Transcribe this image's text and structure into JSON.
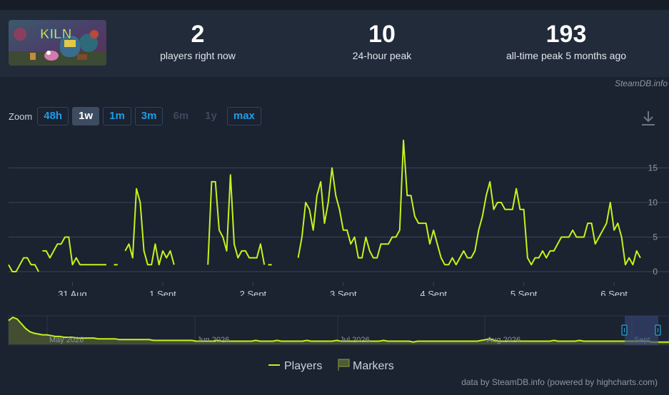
{
  "stats": [
    {
      "value": "2",
      "label": "players right now"
    },
    {
      "value": "10",
      "label": "24-hour peak"
    },
    {
      "value": "193",
      "label": "all-time peak 5 months ago"
    }
  ],
  "game_logo_text": "KILN",
  "credit_top": "SteamDB.info",
  "zoom": {
    "label": "Zoom",
    "buttons": [
      {
        "label": "48h",
        "state": "enabled"
      },
      {
        "label": "1w",
        "state": "active"
      },
      {
        "label": "1m",
        "state": "enabled"
      },
      {
        "label": "3m",
        "state": "enabled"
      },
      {
        "label": "6m",
        "state": "disabled"
      },
      {
        "label": "1y",
        "state": "disabled"
      },
      {
        "label": "max",
        "state": "enabled"
      }
    ]
  },
  "icons": {
    "download": "download-icon"
  },
  "chart_data": {
    "type": "line",
    "title": "",
    "xlabel": "",
    "ylabel": "",
    "ylim": [
      0,
      20
    ],
    "yticks": [
      0,
      5,
      10,
      15
    ],
    "ytick_labels": [
      "0",
      "5",
      "10",
      "15"
    ],
    "x_unit": "hours since the 30 Aug 12:00 data start",
    "xlim": [
      0,
      172
    ],
    "xticks": [
      {
        "x": 17,
        "label": "31 Aug"
      },
      {
        "x": 41,
        "label": "1 Sept"
      },
      {
        "x": 65,
        "label": "2 Sept"
      },
      {
        "x": 89,
        "label": "3 Sept"
      },
      {
        "x": 113,
        "label": "4 Sept"
      },
      {
        "x": 137,
        "label": "5 Sept"
      },
      {
        "x": 161,
        "label": "6 Sept"
      }
    ],
    "grid": true,
    "line_color": "#c3f31c",
    "series": [
      {
        "name": "Players",
        "segments": [
          [
            [
              0,
              1
            ],
            [
              1,
              0
            ],
            [
              2,
              0
            ],
            [
              3,
              1
            ],
            [
              4,
              2
            ],
            [
              5,
              2
            ],
            [
              6,
              1
            ],
            [
              7,
              1
            ],
            [
              8,
              0
            ]
          ],
          [
            [
              9,
              3
            ],
            [
              10,
              3
            ],
            [
              11,
              2
            ],
            [
              12,
              3
            ],
            [
              13,
              4
            ],
            [
              14,
              4
            ],
            [
              15,
              5
            ],
            [
              16,
              5
            ],
            [
              17,
              1
            ],
            [
              18,
              2
            ],
            [
              19,
              1
            ],
            [
              20,
              1
            ],
            [
              21,
              1
            ],
            [
              22,
              1
            ],
            [
              23,
              1
            ],
            [
              24,
              1
            ],
            [
              25,
              1
            ],
            [
              26,
              1
            ]
          ],
          [
            [
              28,
              1
            ],
            [
              29,
              1
            ]
          ],
          [
            [
              31,
              3
            ],
            [
              32,
              4
            ],
            [
              33,
              2
            ],
            [
              34,
              12
            ],
            [
              35,
              10
            ],
            [
              36,
              3
            ],
            [
              37,
              1
            ],
            [
              38,
              1
            ],
            [
              39,
              4
            ],
            [
              40,
              1
            ],
            [
              41,
              3
            ],
            [
              42,
              2
            ],
            [
              43,
              3
            ],
            [
              44,
              1
            ]
          ],
          [
            [
              53,
              1
            ],
            [
              54,
              13
            ],
            [
              55,
              13
            ],
            [
              56,
              6
            ],
            [
              57,
              5
            ],
            [
              58,
              3
            ],
            [
              59,
              14
            ],
            [
              60,
              4
            ],
            [
              61,
              2
            ],
            [
              62,
              3
            ],
            [
              63,
              3
            ],
            [
              64,
              2
            ],
            [
              65,
              2
            ],
            [
              66,
              2
            ],
            [
              67,
              4
            ],
            [
              68,
              1
            ]
          ],
          [
            [
              69,
              1
            ],
            [
              70,
              1
            ]
          ],
          [
            [
              77,
              2
            ],
            [
              78,
              5
            ],
            [
              79,
              10
            ],
            [
              80,
              9
            ],
            [
              81,
              6
            ],
            [
              82,
              11
            ],
            [
              83,
              13
            ],
            [
              84,
              7
            ],
            [
              85,
              10
            ],
            [
              86,
              15
            ],
            [
              87,
              11
            ],
            [
              88,
              9
            ],
            [
              89,
              6
            ],
            [
              90,
              6
            ],
            [
              91,
              4
            ],
            [
              92,
              5
            ],
            [
              93,
              2
            ],
            [
              94,
              2
            ],
            [
              95,
              5
            ],
            [
              96,
              3
            ],
            [
              97,
              2
            ],
            [
              98,
              2
            ],
            [
              99,
              4
            ],
            [
              100,
              4
            ],
            [
              101,
              4
            ],
            [
              102,
              5
            ],
            [
              103,
              5
            ],
            [
              104,
              6
            ],
            [
              105,
              19
            ],
            [
              106,
              11
            ],
            [
              107,
              11
            ],
            [
              108,
              8
            ],
            [
              109,
              7
            ],
            [
              110,
              7
            ],
            [
              111,
              7
            ],
            [
              112,
              4
            ],
            [
              113,
              6
            ],
            [
              114,
              4
            ],
            [
              115,
              2
            ],
            [
              116,
              1
            ],
            [
              117,
              1
            ],
            [
              118,
              2
            ],
            [
              119,
              1
            ],
            [
              120,
              2
            ],
            [
              121,
              3
            ],
            [
              122,
              2
            ],
            [
              123,
              2
            ],
            [
              124,
              3
            ],
            [
              125,
              6
            ],
            [
              126,
              8
            ],
            [
              127,
              11
            ],
            [
              128,
              13
            ],
            [
              129,
              9
            ],
            [
              130,
              10
            ],
            [
              131,
              10
            ],
            [
              132,
              9
            ],
            [
              133,
              9
            ],
            [
              134,
              9
            ],
            [
              135,
              12
            ],
            [
              136,
              9
            ],
            [
              137,
              9
            ],
            [
              138,
              2
            ],
            [
              139,
              1
            ],
            [
              140,
              2
            ],
            [
              141,
              2
            ],
            [
              142,
              3
            ],
            [
              143,
              2
            ],
            [
              144,
              3
            ],
            [
              145,
              3
            ],
            [
              146,
              4
            ],
            [
              147,
              5
            ],
            [
              148,
              5
            ],
            [
              149,
              5
            ],
            [
              150,
              6
            ],
            [
              151,
              5
            ],
            [
              152,
              5
            ],
            [
              153,
              5
            ],
            [
              154,
              7
            ],
            [
              155,
              7
            ],
            [
              156,
              4
            ],
            [
              157,
              5
            ],
            [
              158,
              6
            ],
            [
              159,
              7
            ],
            [
              160,
              10
            ],
            [
              161,
              6
            ],
            [
              162,
              7
            ],
            [
              163,
              5
            ],
            [
              164,
              1
            ],
            [
              165,
              2
            ],
            [
              166,
              1
            ],
            [
              167,
              3
            ],
            [
              168,
              2
            ]
          ]
        ]
      }
    ],
    "navigator": {
      "labels": [
        "May 2026",
        "Jun 2026",
        "Jul 2026",
        "Aug 2026",
        "Sept..."
      ],
      "values": [
        30,
        34,
        32,
        26,
        20,
        16,
        14,
        13,
        12,
        12,
        11,
        10,
        10,
        9,
        9,
        9,
        8,
        8,
        8,
        8,
        8,
        7,
        7,
        7,
        7,
        7,
        6,
        6,
        6,
        6,
        6,
        6,
        6,
        6,
        5,
        5,
        5,
        5,
        5,
        5,
        5,
        5,
        5,
        5,
        4,
        4,
        4,
        4,
        4,
        5,
        4,
        4,
        4,
        4,
        4,
        4,
        4,
        4,
        5,
        4,
        4,
        4,
        4,
        5,
        4,
        4,
        4,
        4,
        4,
        4,
        5,
        4,
        4,
        4,
        4,
        4,
        4,
        5,
        4,
        4,
        4,
        4,
        4,
        4,
        4,
        4,
        4,
        4,
        5,
        4,
        4,
        4,
        4,
        4,
        4,
        3,
        4,
        4,
        4,
        4,
        4,
        4,
        4,
        4,
        4,
        4,
        4,
        4,
        4,
        4,
        4,
        5,
        6,
        7,
        5,
        4,
        4,
        4,
        4,
        4,
        4,
        4,
        4,
        4,
        4,
        4,
        4,
        4,
        5,
        4,
        4,
        4,
        4,
        4,
        5,
        4,
        4,
        4,
        4,
        4,
        4,
        4,
        4,
        4,
        4,
        4,
        4,
        4,
        4,
        4,
        4,
        3,
        3,
        3,
        3,
        3
      ]
    },
    "legend": [
      {
        "name": "Players",
        "marker": "line",
        "color": "#c3f31c"
      },
      {
        "name": "Markers",
        "marker": "flag",
        "color": "#4f5a3a"
      }
    ],
    "legend_position": "bottom-center"
  },
  "credit_bottom": "data by SteamDB.info (powered by highcharts.com)"
}
